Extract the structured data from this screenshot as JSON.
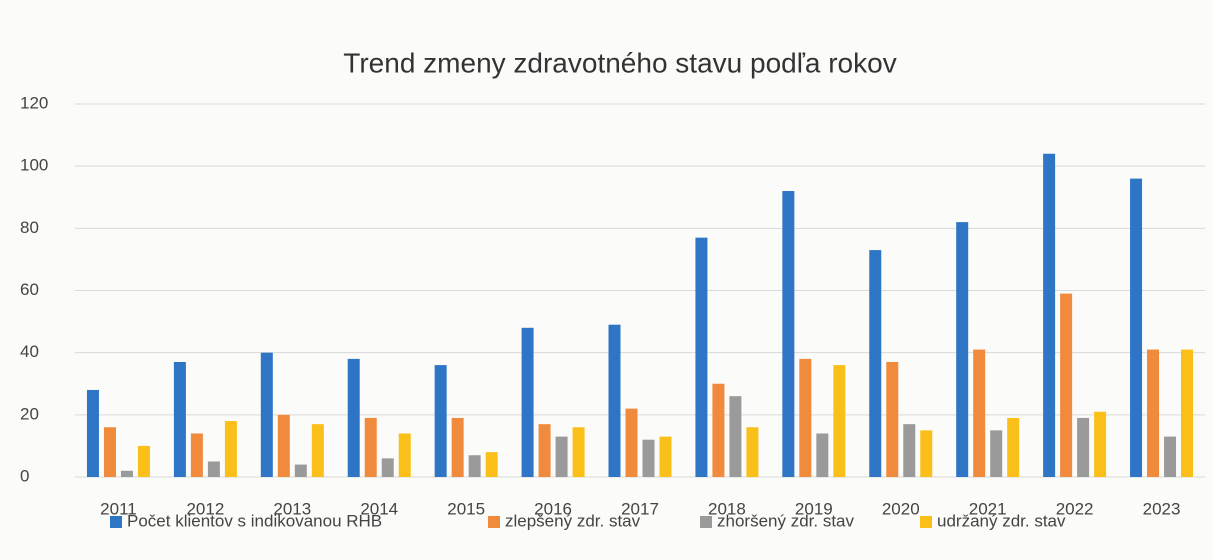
{
  "chart_data": {
    "type": "bar",
    "title": "Trend zmeny zdravotného stavu podľa rokov",
    "categories": [
      "2011",
      "2012",
      "2013",
      "2014",
      "2015",
      "2016",
      "2017",
      "2018",
      "2019",
      "2020",
      "2021",
      "2022",
      "2023"
    ],
    "series": [
      {
        "name": "Počet klientov s indikovanou RHB",
        "color": "#2e75c6",
        "values": [
          28,
          37,
          40,
          38,
          36,
          48,
          49,
          77,
          92,
          73,
          82,
          104,
          96
        ]
      },
      {
        "name": "zlepšený zdr. stav",
        "color": "#f08a3c",
        "values": [
          16,
          14,
          20,
          19,
          19,
          17,
          22,
          30,
          38,
          37,
          41,
          59,
          41
        ]
      },
      {
        "name": "zhoršený zdr. stav",
        "color": "#9a9a9a",
        "values": [
          2,
          5,
          4,
          6,
          7,
          13,
          12,
          26,
          14,
          17,
          15,
          19,
          13
        ]
      },
      {
        "name": "udržaný zdr. stav",
        "color": "#fbbf1a",
        "values": [
          10,
          18,
          17,
          14,
          8,
          16,
          13,
          16,
          36,
          15,
          19,
          21,
          41
        ]
      }
    ],
    "ylim": [
      0,
      120
    ],
    "yticks": [
      0,
      20,
      40,
      60,
      80,
      100,
      120
    ],
    "grid": true,
    "legend": "bottom"
  }
}
